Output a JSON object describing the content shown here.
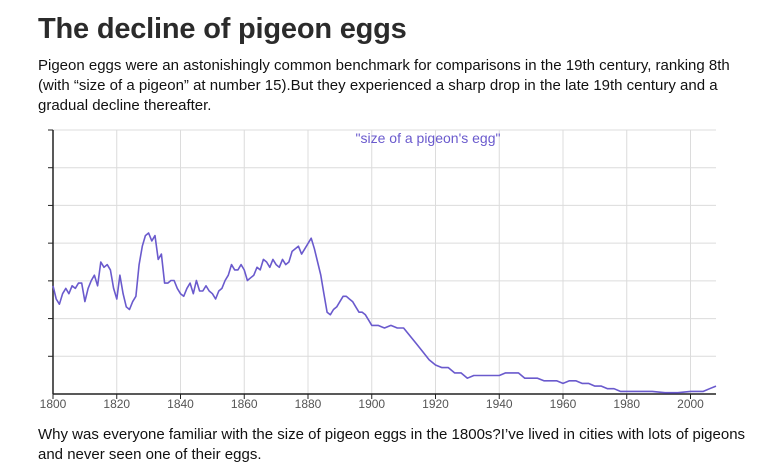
{
  "heading": "The decline of pigeon eggs",
  "intro": "Pigeon eggs were an astonishingly common benchmark for comparisons in the 19th century, ranking 8th (with “size of a pigeon” at number 15).But they experienced a sharp drop in the late 19th century and a gradual decline thereafter.",
  "outro": "Why was everyone familiar with the size of pigeon eggs in the 1800s?I’ve lived in cities with lots of pigeons and never seen one of their eggs.",
  "colors": {
    "line": "#6a5acd",
    "grid": "#dcdcdc",
    "axis": "#222222"
  },
  "chart_data": {
    "type": "line",
    "title": "",
    "xlabel": "",
    "ylabel": "",
    "xlim": [
      1800,
      2008
    ],
    "ylim": [
      0,
      100
    ],
    "grid": true,
    "x_ticks": [
      1800,
      1820,
      1840,
      1860,
      1880,
      1900,
      1920,
      1940,
      1960,
      1980,
      2000
    ],
    "series": [
      {
        "name": "\"size of a pigeon's egg\"",
        "x": [
          1800,
          1801,
          1802,
          1803,
          1804,
          1805,
          1806,
          1807,
          1808,
          1809,
          1810,
          1811,
          1812,
          1813,
          1814,
          1815,
          1816,
          1817,
          1818,
          1819,
          1820,
          1821,
          1822,
          1823,
          1824,
          1825,
          1826,
          1827,
          1828,
          1829,
          1830,
          1831,
          1832,
          1833,
          1834,
          1835,
          1836,
          1837,
          1838,
          1839,
          1840,
          1841,
          1842,
          1843,
          1844,
          1845,
          1846,
          1847,
          1848,
          1849,
          1850,
          1851,
          1852,
          1853,
          1854,
          1855,
          1856,
          1857,
          1858,
          1859,
          1860,
          1861,
          1862,
          1863,
          1864,
          1865,
          1866,
          1867,
          1868,
          1869,
          1870,
          1871,
          1872,
          1873,
          1874,
          1875,
          1876,
          1877,
          1878,
          1879,
          1880,
          1881,
          1882,
          1883,
          1884,
          1885,
          1886,
          1887,
          1888,
          1889,
          1890,
          1891,
          1892,
          1893,
          1894,
          1895,
          1896,
          1897,
          1898,
          1899,
          1900,
          1902,
          1904,
          1906,
          1908,
          1910,
          1912,
          1914,
          1916,
          1918,
          1920,
          1922,
          1924,
          1926,
          1928,
          1930,
          1932,
          1934,
          1936,
          1938,
          1940,
          1942,
          1944,
          1946,
          1948,
          1950,
          1952,
          1954,
          1956,
          1958,
          1960,
          1962,
          1964,
          1966,
          1968,
          1970,
          1972,
          1974,
          1976,
          1978,
          1980,
          1984,
          1988,
          1992,
          1996,
          2000,
          2004,
          2006,
          2008
        ],
        "values": [
          41,
          36,
          34,
          38,
          40,
          38,
          41,
          40,
          42,
          42,
          35,
          40,
          43,
          45,
          41,
          50,
          48,
          49,
          47,
          40,
          36,
          45,
          38,
          33,
          32,
          35,
          37,
          49,
          56,
          60,
          61,
          58,
          60,
          51,
          53,
          42,
          42,
          43,
          43,
          40,
          38,
          37,
          40,
          42,
          38,
          43,
          39,
          39,
          41,
          39,
          38,
          36,
          39,
          40,
          43,
          45,
          49,
          47,
          47,
          49,
          47,
          43,
          44,
          45,
          48,
          47,
          51,
          50,
          48,
          51,
          49,
          48,
          51,
          49,
          50,
          54,
          55,
          56,
          53,
          55,
          57,
          59,
          55,
          50,
          45,
          38,
          31,
          30,
          32,
          33,
          35,
          37,
          37,
          36,
          35,
          33,
          31,
          31,
          30,
          28,
          26,
          26,
          25,
          26,
          25,
          25,
          22,
          19,
          16,
          13,
          11,
          10,
          10,
          8,
          8,
          6,
          7,
          7,
          7,
          7,
          7,
          8,
          8,
          8,
          6,
          6,
          6,
          5,
          5,
          5,
          4,
          5,
          5,
          4,
          4,
          3,
          3,
          2,
          2,
          1,
          1,
          1,
          1,
          0.5,
          0.5,
          1,
          1,
          2,
          3
        ]
      }
    ]
  }
}
